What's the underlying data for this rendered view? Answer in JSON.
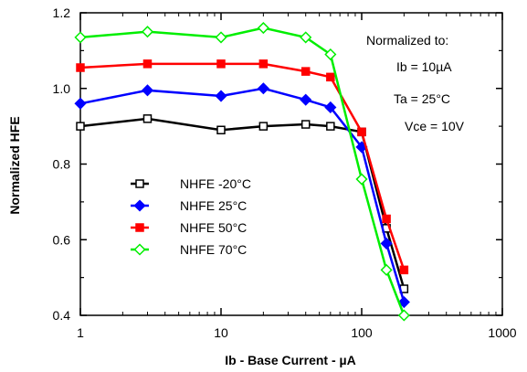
{
  "chart_data": {
    "type": "line",
    "title": "",
    "xlabel": "Ib - Base Current - µA",
    "ylabel": "Normalized  HFE",
    "xscale": "log",
    "xlim": [
      1,
      1000
    ],
    "ylim": [
      0.4,
      1.2
    ],
    "x_ticks": [
      "1",
      "10",
      "100",
      "1000"
    ],
    "y_ticks": [
      "0.4",
      "0.6",
      "0.8",
      "1.0",
      "1.2"
    ],
    "grid": false,
    "legend_position": "lower-left",
    "annotations": [
      "Normalized to:",
      "Ib = 10µA",
      "Ta = 25°C",
      "Vce = 10V"
    ],
    "x": [
      1,
      3,
      10,
      20,
      40,
      60,
      100,
      150,
      200
    ],
    "series": [
      {
        "name": "NHFE -20°C",
        "color": "#000000",
        "marker": "square-open",
        "values": [
          0.9,
          0.92,
          0.89,
          0.9,
          0.905,
          0.9,
          0.885,
          0.63,
          0.47
        ]
      },
      {
        "name": "NHFE 25°C",
        "color": "#0000ff",
        "marker": "diamond-filled",
        "values": [
          0.96,
          0.995,
          0.98,
          1.0,
          0.97,
          0.95,
          0.845,
          0.59,
          0.435
        ]
      },
      {
        "name": "NHFE 50°C",
        "color": "#ff0000",
        "marker": "square-filled",
        "values": [
          1.055,
          1.065,
          1.065,
          1.065,
          1.045,
          1.03,
          0.885,
          0.655,
          0.52
        ]
      },
      {
        "name": "NHFE 70°C",
        "color": "#00ee00",
        "marker": "diamond-open",
        "values": [
          1.135,
          1.15,
          1.135,
          1.16,
          1.135,
          1.09,
          0.76,
          0.52,
          0.4
        ]
      }
    ]
  }
}
